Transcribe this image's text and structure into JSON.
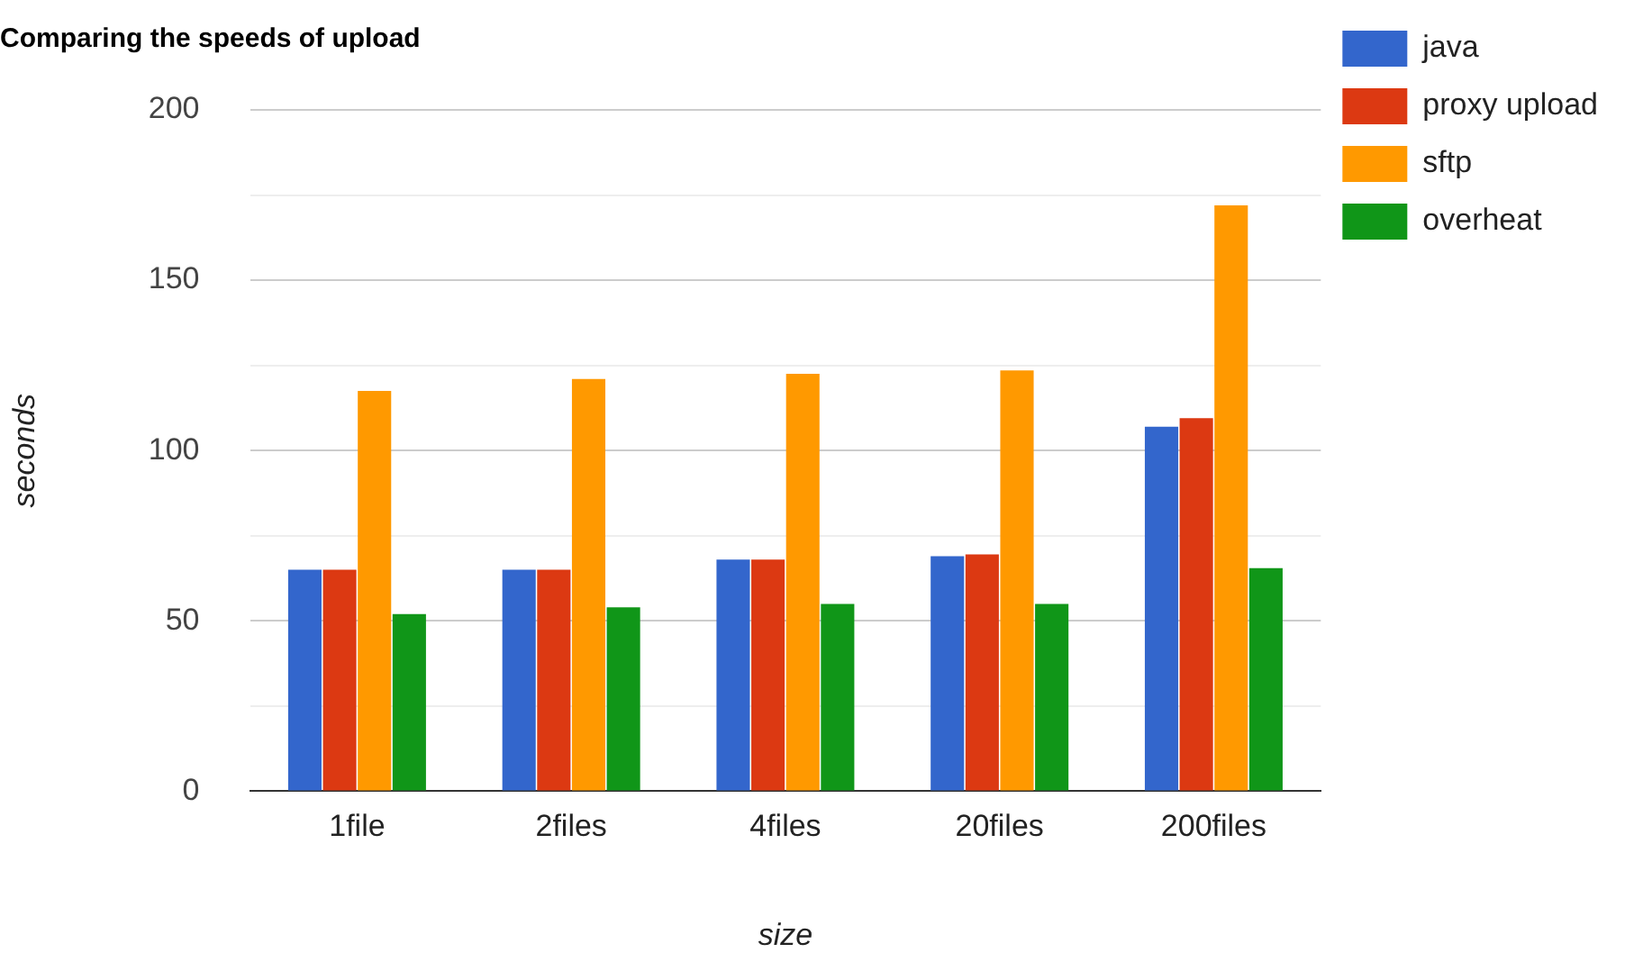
{
  "chart_data": {
    "type": "bar",
    "title": "Comparing the speeds of upload",
    "xlabel": "size",
    "ylabel": "seconds",
    "categories": [
      "1file",
      "2files",
      "4files",
      "20files",
      "200files"
    ],
    "series": [
      {
        "name": "java",
        "color": "#3366cc",
        "values": [
          65,
          65,
          68,
          69,
          107
        ]
      },
      {
        "name": "proxy upload",
        "color": "#dc3912",
        "values": [
          65,
          65,
          68,
          69.5,
          109.5
        ]
      },
      {
        "name": "sftp",
        "color": "#ff9900",
        "values": [
          117.5,
          121,
          122.5,
          123.5,
          172
        ]
      },
      {
        "name": "overheat",
        "color": "#109618",
        "values": [
          52,
          54,
          55,
          55,
          65.5
        ]
      }
    ],
    "ylim": [
      0,
      200
    ],
    "yticks": [
      0,
      {
        "value": 25,
        "label": null
      },
      50,
      {
        "value": 75,
        "label": null
      },
      100,
      {
        "value": 125,
        "label": null
      },
      150,
      {
        "value": 175,
        "label": null
      },
      200
    ],
    "grid": "y",
    "legend": "right"
  }
}
